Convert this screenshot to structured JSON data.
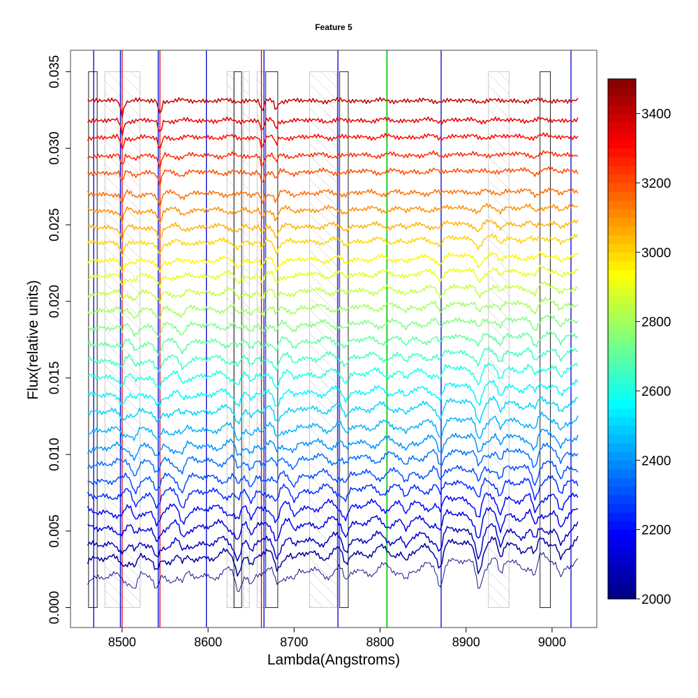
{
  "chart_data": {
    "type": "line",
    "title": "Feature 5",
    "xlabel": "Lambda(Angstroms)",
    "ylabel": "Flux(relative units)",
    "xlim": [
      8440,
      9052
    ],
    "ylim": [
      -0.0013,
      0.0364
    ],
    "x_ticks": [
      8500,
      8600,
      8700,
      8800,
      8900,
      9000
    ],
    "y_ticks": [
      0.0,
      0.005,
      0.01,
      0.015,
      0.02,
      0.025,
      0.03,
      0.035
    ],
    "x_tick_labels": [
      "8500",
      "8600",
      "8700",
      "8800",
      "8900",
      "9000"
    ],
    "y_tick_labels": [
      "0.000",
      "0.005",
      "0.010",
      "0.015",
      "0.020",
      "0.025",
      "0.030",
      "0.035"
    ],
    "grid": false,
    "colorbar": {
      "range": [
        2000,
        3500
      ],
      "ticks": [
        2000,
        2200,
        2400,
        2600,
        2800,
        3000,
        3200,
        3400
      ],
      "tick_labels": [
        "2000",
        "2200",
        "2400",
        "2600",
        "2800",
        "3000",
        "3200",
        "3400"
      ],
      "colormap": [
        "#00007f",
        "#0000ff",
        "#007fff",
        "#00ffff",
        "#7fff7f",
        "#ffff00",
        "#ff7f00",
        "#ff0000",
        "#7f0000"
      ]
    },
    "x_range_spectra": [
      8460,
      9030
    ],
    "series_levels": [
      0.0019,
      0.0031,
      0.004,
      0.0051,
      0.0062,
      0.0073,
      0.0083,
      0.0094,
      0.0104,
      0.0115,
      0.0127,
      0.0138,
      0.015,
      0.0161,
      0.0172,
      0.0183,
      0.0194,
      0.0205,
      0.0216,
      0.0226,
      0.0238,
      0.0248,
      0.0259,
      0.027,
      0.0284,
      0.0295,
      0.0307,
      0.0318,
      0.0331
    ],
    "series_temperatures": [
      2000,
      2050,
      2100,
      2150,
      2200,
      2250,
      2300,
      2350,
      2400,
      2450,
      2500,
      2550,
      2600,
      2650,
      2700,
      2750,
      2800,
      2850,
      2900,
      2950,
      3000,
      3050,
      3100,
      3150,
      3200,
      3250,
      3300,
      3350,
      3400
    ],
    "vertical_lines": [
      {
        "x": 8467,
        "color": "#0000cc"
      },
      {
        "x": 8498,
        "color": "#0000cc"
      },
      {
        "x": 8500,
        "color": "#dd0000"
      },
      {
        "x": 8542,
        "color": "#0000cc"
      },
      {
        "x": 8544,
        "color": "#dd0000"
      },
      {
        "x": 8598,
        "color": "#0000cc"
      },
      {
        "x": 8662,
        "color": "#dd0000"
      },
      {
        "x": 8665,
        "color": "#0000cc"
      },
      {
        "x": 8751,
        "color": "#0000cc"
      },
      {
        "x": 8808,
        "color": "#22cc22"
      },
      {
        "x": 8871,
        "color": "#0000cc"
      },
      {
        "x": 9022,
        "color": "#0000cc"
      }
    ],
    "hatched_bands": [
      [
        8480,
        8521
      ],
      [
        8622,
        8631
      ],
      [
        8641,
        8648
      ],
      [
        8657,
        8667
      ],
      [
        8718,
        8750
      ],
      [
        8926,
        8950
      ]
    ],
    "outlined_boxes": [
      [
        8461,
        8471
      ],
      [
        8630,
        8639
      ],
      [
        8667,
        8681
      ],
      [
        8753,
        8763
      ],
      [
        8986,
        8998
      ]
    ],
    "box_y_range": [
      0.0,
      0.035
    ],
    "absorption_features": [
      {
        "x": 8500,
        "depth": 1.0,
        "hot": true
      },
      {
        "x": 8544,
        "depth": 1.0,
        "hot": true
      },
      {
        "x": 8663,
        "depth": 0.8,
        "hot": true
      },
      {
        "x": 8679,
        "depth": 0.6,
        "hot": true
      },
      {
        "x": 8515,
        "depth": 0.8,
        "hot": false
      },
      {
        "x": 8540,
        "depth": 1.0,
        "hot": false
      },
      {
        "x": 8570,
        "depth": 0.8,
        "hot": false
      },
      {
        "x": 8635,
        "depth": 1.0,
        "hot": false
      },
      {
        "x": 8650,
        "depth": 0.8,
        "hot": false
      },
      {
        "x": 8680,
        "depth": 0.8,
        "hot": false
      },
      {
        "x": 8700,
        "depth": 0.6,
        "hot": false
      },
      {
        "x": 8760,
        "depth": 0.8,
        "hot": false
      },
      {
        "x": 8830,
        "depth": 0.7,
        "hot": false
      },
      {
        "x": 8870,
        "depth": 1.2,
        "hot": false
      },
      {
        "x": 8915,
        "depth": 1.4,
        "hot": false
      },
      {
        "x": 8940,
        "depth": 1.2,
        "hot": false
      },
      {
        "x": 8980,
        "depth": 1.2,
        "hot": false
      },
      {
        "x": 9010,
        "depth": 1.0,
        "hot": false
      }
    ]
  }
}
